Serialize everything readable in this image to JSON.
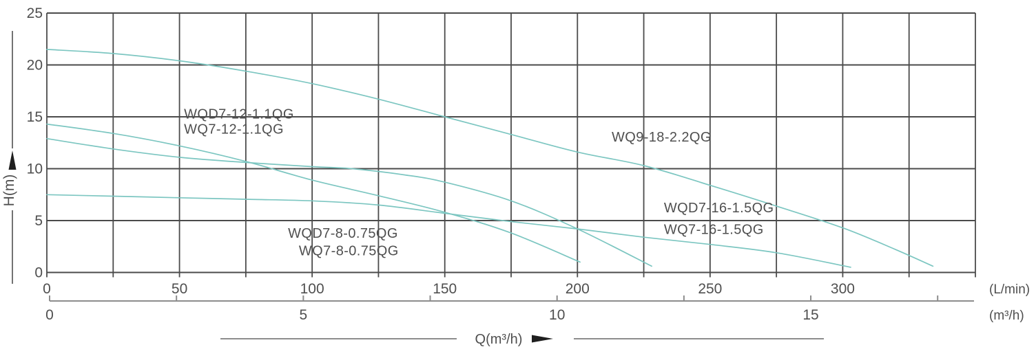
{
  "chart_data": {
    "type": "line",
    "title": "",
    "ylabel": "H(m)",
    "xlabel": "Q(m³/h)",
    "grid": true,
    "y_axis": {
      "ticks": [
        0,
        5,
        10,
        15,
        20,
        25
      ],
      "range": [
        0,
        25
      ],
      "gridline_step": 5
    },
    "x_axis_primary": {
      "unit": "(L/min)",
      "ticks": [
        0,
        50,
        100,
        150,
        200,
        250,
        300
      ],
      "range": [
        0,
        350
      ],
      "gridline_step": 25
    },
    "x_axis_secondary": {
      "unit": "(m³/h)",
      "ticks": [
        0,
        5,
        10,
        15
      ],
      "minor_tick_step": 2.5,
      "last_tick": 17.5
    },
    "series": [
      {
        "name": "curve-1",
        "points": [
          [
            0,
            21.5
          ],
          [
            25,
            21.1
          ],
          [
            50,
            20.4
          ],
          [
            75,
            19.4
          ],
          [
            100,
            18.2
          ],
          [
            125,
            16.7
          ],
          [
            150,
            15.0
          ],
          [
            175,
            13.3
          ],
          [
            200,
            11.6
          ],
          [
            225,
            10.3
          ],
          [
            250,
            8.4
          ],
          [
            275,
            6.4
          ],
          [
            300,
            4.3
          ],
          [
            320,
            2.2
          ],
          [
            334,
            0.6
          ]
        ]
      },
      {
        "name": "curve-2",
        "points": [
          [
            0,
            14.3
          ],
          [
            25,
            13.4
          ],
          [
            50,
            12.2
          ],
          [
            75,
            10.7
          ],
          [
            100,
            8.9
          ],
          [
            125,
            7.4
          ],
          [
            150,
            5.8
          ],
          [
            175,
            3.8
          ],
          [
            201,
            1.0
          ]
        ]
      },
      {
        "name": "curve-3",
        "points": [
          [
            0,
            12.9
          ],
          [
            25,
            11.9
          ],
          [
            50,
            11.1
          ],
          [
            75,
            10.6
          ],
          [
            100,
            10.2
          ],
          [
            115,
            10.0
          ],
          [
            135,
            9.4
          ],
          [
            150,
            8.7
          ],
          [
            175,
            6.9
          ],
          [
            200,
            4.2
          ],
          [
            228,
            0.6
          ]
        ]
      },
      {
        "name": "curve-4",
        "points": [
          [
            0,
            7.5
          ],
          [
            25,
            7.35
          ],
          [
            50,
            7.2
          ],
          [
            75,
            7.05
          ],
          [
            100,
            6.9
          ],
          [
            125,
            6.5
          ],
          [
            150,
            5.7
          ],
          [
            175,
            4.9
          ],
          [
            200,
            4.2
          ],
          [
            225,
            3.4
          ],
          [
            250,
            2.7
          ],
          [
            275,
            1.9
          ],
          [
            303,
            0.5
          ]
        ]
      }
    ],
    "annotations": [
      {
        "text": "WQD7-12-1.1QG",
        "q_lmin": 51.7,
        "h_m": 15.2
      },
      {
        "text": "WQ7-12-1.1QG",
        "q_lmin": 51.7,
        "h_m": 13.74
      },
      {
        "text": "WQ9-18-2.2QG",
        "q_lmin": 212.9,
        "h_m": 12.95
      },
      {
        "text": "WQD7-16-1.5QG",
        "q_lmin": 232.6,
        "h_m": 6.13
      },
      {
        "text": "WQ7-16-1.5QG",
        "q_lmin": 232.6,
        "h_m": 4.07
      },
      {
        "text": "WQD7-8-0.75QG",
        "q_lmin": 90.9,
        "h_m": 3.68
      },
      {
        "text": "WQ7-8-0.75QG",
        "q_lmin": 95.0,
        "h_m": 2.02
      }
    ],
    "legend_position": "none"
  },
  "colors": {
    "curve": "#7cc6c1",
    "grid": "#4a4a4a",
    "ruler": "#8c8c8c",
    "text": "#4f4f4f",
    "arrow": "#1f1f1f",
    "background": "#ffffff"
  }
}
